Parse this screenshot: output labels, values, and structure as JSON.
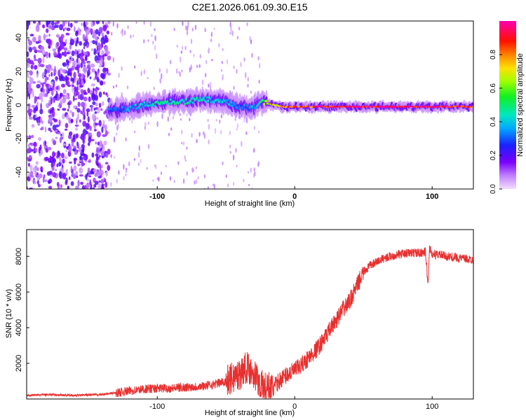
{
  "figure_title": "C2E1.2026.061.09.30.E15",
  "chart_data": [
    {
      "type": "heatmap",
      "title": "C2E1.2026.061.09.30.E15",
      "xlabel": "Height of straight line (km)",
      "ylabel": "Frequency (Hz)",
      "xlim": [
        -195,
        130
      ],
      "ylim": [
        -50,
        50
      ],
      "xticks": [
        -100,
        0,
        100
      ],
      "yticks": [
        -40,
        -20,
        0,
        20,
        40
      ],
      "colorbar": {
        "label": "Normalized spectral amplitude",
        "range": [
          0,
          1
        ],
        "ticks": [
          0.0,
          0.2,
          0.4,
          0.6,
          0.8
        ],
        "colormap": [
          "#f0d0ff",
          "#b46bff",
          "#6a00f0",
          "#1030ff",
          "#00c8ff",
          "#00e080",
          "#40ff00",
          "#e8ff00",
          "#ff9000",
          "#ff2000",
          "#ff00a0"
        ]
      },
      "ridge": {
        "description": "Dominant spectral line frequency vs height",
        "x": [
          -130,
          -120,
          -110,
          -100,
          -90,
          -80,
          -70,
          -60,
          -50,
          -40,
          -30,
          -25,
          -20,
          -10,
          0,
          10,
          20,
          40,
          60,
          80,
          100,
          120,
          130
        ],
        "frequency": [
          -3,
          -2,
          0,
          1,
          2,
          2,
          3,
          3,
          2,
          -1,
          -2,
          2,
          1,
          -1,
          -1,
          -1,
          -1,
          -1,
          -1,
          -1,
          -1,
          -1,
          -1
        ],
        "amplitude": [
          0.3,
          0.35,
          0.4,
          0.45,
          0.45,
          0.45,
          0.45,
          0.4,
          0.4,
          0.3,
          0.35,
          0.45,
          0.7,
          0.8,
          0.85,
          0.85,
          0.9,
          0.95,
          0.95,
          0.95,
          0.95,
          0.9,
          0.9
        ]
      },
      "noise_region": {
        "x_from": -195,
        "x_to": -135
      }
    },
    {
      "type": "line",
      "xlabel": "Height of straight line (km)",
      "ylabel": "SNR (10 * v/v)",
      "xlim": [
        -195,
        130
      ],
      "ylim": [
        0,
        9500
      ],
      "xticks": [
        -100,
        0,
        100
      ],
      "yticks": [
        2000,
        4000,
        6000,
        8000
      ],
      "series": [
        {
          "name": "SNR",
          "color": "#e83030",
          "x": [
            -195,
            -180,
            -160,
            -140,
            -130,
            -120,
            -110,
            -100,
            -90,
            -80,
            -70,
            -60,
            -50,
            -40,
            -35,
            -30,
            -25,
            -20,
            -15,
            -10,
            -5,
            0,
            5,
            10,
            15,
            20,
            25,
            30,
            35,
            40,
            45,
            50,
            55,
            60,
            65,
            70,
            75,
            80,
            85,
            90,
            95,
            96,
            97,
            98,
            99,
            100,
            105,
            110,
            115,
            120,
            125,
            130
          ],
          "y": [
            200,
            250,
            200,
            250,
            350,
            450,
            550,
            600,
            600,
            650,
            700,
            800,
            1000,
            1400,
            1800,
            1500,
            800,
            600,
            700,
            1100,
            1400,
            1600,
            1900,
            2300,
            2700,
            3200,
            3800,
            4400,
            5000,
            5500,
            6300,
            7100,
            7500,
            7700,
            7900,
            8000,
            8100,
            8150,
            8200,
            8200,
            8250,
            7500,
            6300,
            8500,
            8300,
            8100,
            8100,
            8000,
            7950,
            7900,
            7850,
            7800
          ]
        }
      ]
    }
  ]
}
